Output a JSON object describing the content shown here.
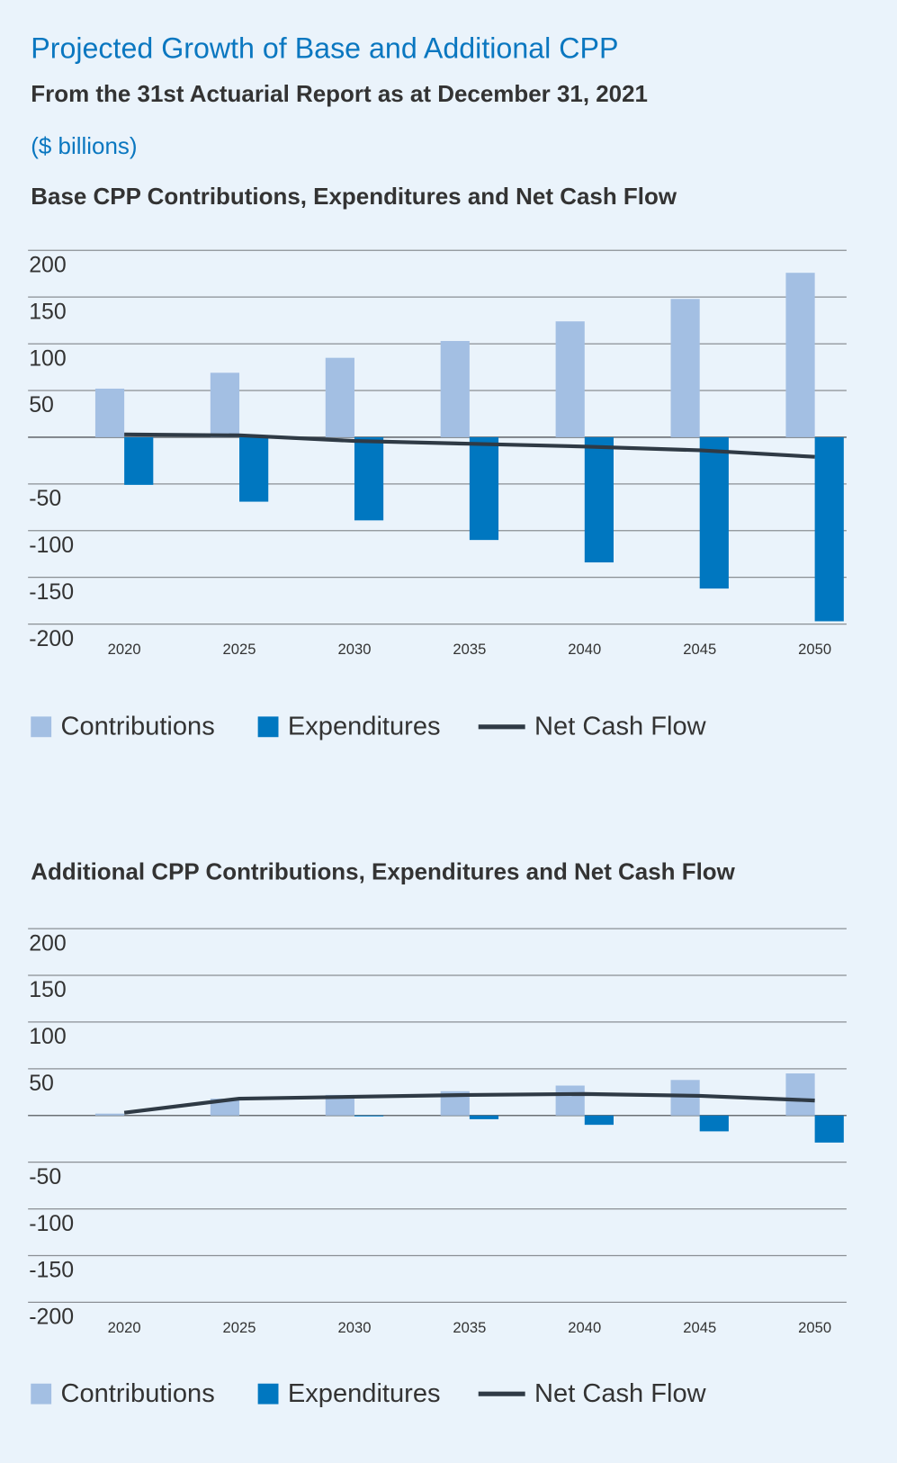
{
  "header": {
    "title": "Projected Growth of Base and Additional CPP",
    "subtitle": "From the 31st Actuarial Report as at December 31, 2021",
    "units": "($ billions)"
  },
  "chart_data": [
    {
      "type": "bar",
      "title": "Base CPP Contributions, Expenditures and Net Cash Flow",
      "categories": [
        "2020",
        "2025",
        "2030",
        "2035",
        "2040",
        "2045",
        "2050"
      ],
      "series": [
        {
          "name": "Contributions",
          "type": "bar",
          "color": "#a3bfe3",
          "values": [
            52,
            69,
            85,
            103,
            124,
            148,
            176
          ]
        },
        {
          "name": "Expenditures",
          "type": "bar",
          "color": "#0077c0",
          "values": [
            -51,
            -69,
            -89,
            -110,
            -134,
            -162,
            -197
          ]
        },
        {
          "name": "Net Cash Flow",
          "type": "line",
          "color": "#2f3a45",
          "values": [
            3,
            2,
            -4,
            -7,
            -10,
            -14,
            -21
          ]
        }
      ],
      "ylim": [
        -200,
        200
      ],
      "yticks": [
        200,
        150,
        100,
        50,
        -50,
        -100,
        -150,
        -200
      ],
      "grid": true,
      "legend": "bottom"
    },
    {
      "type": "bar",
      "title": "Additional CPP Contributions, Expenditures and Net Cash Flow",
      "categories": [
        "2020",
        "2025",
        "2030",
        "2035",
        "2040",
        "2045",
        "2050"
      ],
      "series": [
        {
          "name": "Contributions",
          "type": "bar",
          "color": "#a3bfe3",
          "values": [
            2,
            18,
            22,
            26,
            32,
            38,
            45
          ]
        },
        {
          "name": "Expenditures",
          "type": "bar",
          "color": "#0077c0",
          "values": [
            0,
            0,
            -1,
            -4,
            -10,
            -17,
            -29
          ]
        },
        {
          "name": "Net Cash Flow",
          "type": "line",
          "color": "#2f3a45",
          "values": [
            3,
            18,
            20,
            22,
            23,
            21,
            16
          ]
        }
      ],
      "ylim": [
        -200,
        200
      ],
      "yticks": [
        200,
        150,
        100,
        50,
        -50,
        -100,
        -150,
        -200
      ],
      "grid": true,
      "legend": "bottom"
    }
  ]
}
